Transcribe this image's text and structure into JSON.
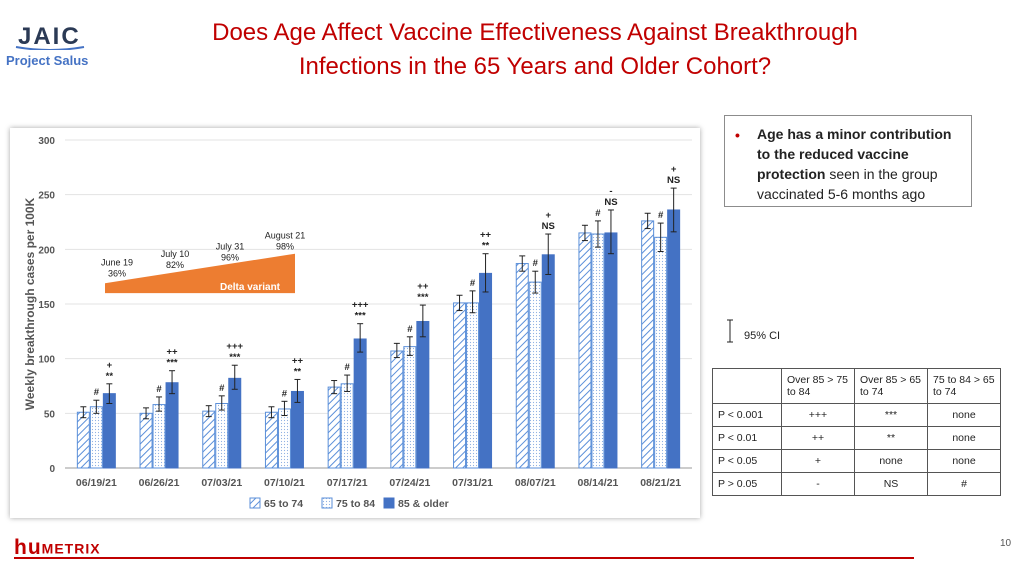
{
  "header": {
    "logo_text": "JAIC",
    "logo_subtitle": "Project Salus",
    "title_line1": "Does Age Affect Vaccine Effectiveness Against Breakthrough",
    "title_line2": "Infections in the 65 Years and Older Cohort?"
  },
  "note": {
    "bold_text": "Age has a minor contribution to the reduced vaccine protection",
    "rest_text": " seen in the group vaccinated 5-6 months ago"
  },
  "ci_legend": "95% CI",
  "sig_table": {
    "headers": [
      "",
      "Over 85 > 75 to 84",
      "Over 85 > 65 to 74",
      "75 to 84 > 65 to 74"
    ],
    "rows": [
      [
        "P < 0.001",
        "+++",
        "***",
        "none"
      ],
      [
        "P < 0.01",
        "++",
        "**",
        "none"
      ],
      [
        "P < 0.05",
        "+",
        "none",
        "none"
      ],
      [
        "P > 0.05",
        "-",
        "NS",
        "#"
      ]
    ]
  },
  "footer": {
    "brand_hu": "hu",
    "brand_rest": "METRIX",
    "page": "10"
  },
  "colors": {
    "title": "#c00000",
    "series3": "#4472c4",
    "series_outline": "#5b8fd9",
    "arrow": "#ed7d31"
  },
  "chart_data": {
    "type": "bar",
    "ylabel": "Weekly breakthrough cases per 100K",
    "ylim": [
      0,
      300
    ],
    "yticks": [
      0,
      50,
      100,
      150,
      200,
      250,
      300
    ],
    "categories": [
      "06/19/21",
      "06/26/21",
      "07/03/21",
      "07/10/21",
      "07/17/21",
      "07/24/21",
      "07/31/21",
      "08/07/21",
      "08/14/21",
      "08/21/21"
    ],
    "series": [
      {
        "name": "65 to 74",
        "pattern": "hatched",
        "values": [
          51,
          50,
          52,
          51,
          74,
          107,
          151,
          187,
          215,
          226
        ],
        "ci": [
          [
            46,
            56
          ],
          [
            45,
            55
          ],
          [
            47,
            57
          ],
          [
            46,
            56
          ],
          [
            68,
            80
          ],
          [
            101,
            114
          ],
          [
            144,
            158
          ],
          [
            180,
            194
          ],
          [
            208,
            222
          ],
          [
            219,
            233
          ]
        ]
      },
      {
        "name": "75 to 84",
        "pattern": "dotted",
        "values": [
          56,
          58,
          59,
          54,
          77,
          111,
          151,
          170,
          214,
          211
        ],
        "ci": [
          [
            50,
            62
          ],
          [
            52,
            65
          ],
          [
            53,
            66
          ],
          [
            48,
            61
          ],
          [
            70,
            85
          ],
          [
            103,
            120
          ],
          [
            142,
            162
          ],
          [
            160,
            180
          ],
          [
            202,
            226
          ],
          [
            198,
            224
          ]
        ]
      },
      {
        "name": "85 & older",
        "pattern": "solid",
        "values": [
          68,
          78,
          82,
          70,
          118,
          134,
          178,
          195,
          215,
          236
        ],
        "ci": [
          [
            59,
            77
          ],
          [
            68,
            89
          ],
          [
            72,
            94
          ],
          [
            60,
            81
          ],
          [
            106,
            132
          ],
          [
            120,
            149
          ],
          [
            161,
            196
          ],
          [
            177,
            214
          ],
          [
            196,
            236
          ],
          [
            216,
            256
          ]
        ]
      }
    ],
    "annotations": [
      {
        "category": 0,
        "series": 1,
        "lines": [
          "#"
        ]
      },
      {
        "category": 0,
        "series": 2,
        "lines": [
          "+",
          "**"
        ]
      },
      {
        "category": 1,
        "series": 1,
        "lines": [
          "#"
        ]
      },
      {
        "category": 1,
        "series": 2,
        "lines": [
          "++",
          "***"
        ]
      },
      {
        "category": 2,
        "series": 1,
        "lines": [
          "#"
        ]
      },
      {
        "category": 2,
        "series": 2,
        "lines": [
          "+++",
          "***"
        ]
      },
      {
        "category": 3,
        "series": 1,
        "lines": [
          "#"
        ]
      },
      {
        "category": 3,
        "series": 2,
        "lines": [
          "++",
          "**"
        ]
      },
      {
        "category": 4,
        "series": 1,
        "lines": [
          "#"
        ]
      },
      {
        "category": 4,
        "series": 2,
        "lines": [
          "+++",
          "***"
        ]
      },
      {
        "category": 5,
        "series": 1,
        "lines": [
          "#"
        ]
      },
      {
        "category": 5,
        "series": 2,
        "lines": [
          "++",
          "***"
        ]
      },
      {
        "category": 6,
        "series": 1,
        "lines": [
          "#"
        ]
      },
      {
        "category": 6,
        "series": 2,
        "lines": [
          "++",
          "**"
        ]
      },
      {
        "category": 7,
        "series": 1,
        "lines": [
          "#"
        ]
      },
      {
        "category": 7,
        "series": 2,
        "lines": [
          "+",
          "NS"
        ]
      },
      {
        "category": 8,
        "series": 1,
        "lines": [
          "#"
        ]
      },
      {
        "category": 8,
        "series": 2,
        "lines": [
          "-",
          "NS"
        ]
      },
      {
        "category": 9,
        "series": 1,
        "lines": [
          "#"
        ]
      },
      {
        "category": 9,
        "series": 2,
        "lines": [
          "+",
          "NS"
        ]
      }
    ],
    "delta_variant": {
      "label": "Delta variant",
      "milestones": [
        {
          "date": "June 19",
          "pct": "36%"
        },
        {
          "date": "July 10",
          "pct": "82%"
        },
        {
          "date": "July 31",
          "pct": "96%"
        },
        {
          "date": "August 21",
          "pct": "98%"
        }
      ]
    }
  }
}
